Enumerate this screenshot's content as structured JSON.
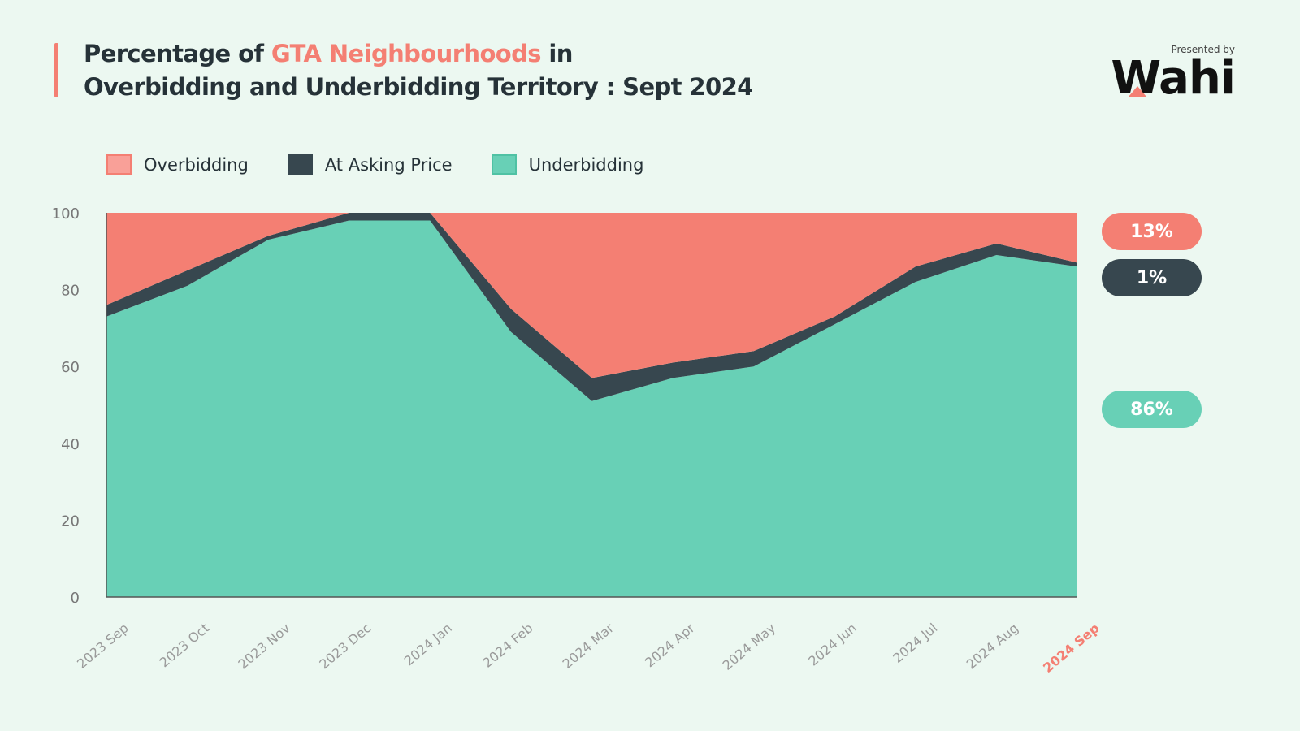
{
  "header": {
    "title_part1": "Percentage of ",
    "title_highlight": "GTA Neighbourhoods",
    "title_part2": " in",
    "title_line2": "Overbidding and Underbidding Territory : Sept 2024"
  },
  "brand": {
    "presented_by": "Presented by",
    "logo_text": "Wahi"
  },
  "callouts": {
    "overbidding": "13%",
    "at_asking": "1%",
    "underbidding": "86%"
  },
  "colors": {
    "overbidding": "#f47f73",
    "at_asking": "#37474f",
    "underbidding": "#68d0b6",
    "background": "#ecf8f1",
    "highlight_tick": "#f47f73"
  },
  "chart_data": {
    "type": "area",
    "stacked": true,
    "x": [
      "2023 Sep",
      "2023 Oct",
      "2023 Nov",
      "2023 Dec",
      "2024 Jan",
      "2024 Feb",
      "2024 Mar",
      "2024 Apr",
      "2024 May",
      "2024 Jun",
      "2024 Jul",
      "2024 Aug",
      "2024 Sep"
    ],
    "series": [
      {
        "name": "Underbidding",
        "values": [
          73,
          81,
          93,
          98,
          98,
          69,
          51,
          57,
          60,
          71,
          82,
          89,
          86
        ]
      },
      {
        "name": "At Asking Price",
        "values": [
          3,
          4,
          1,
          2,
          2,
          6,
          6,
          4,
          4,
          2,
          4,
          3,
          1
        ]
      },
      {
        "name": "Overbidding",
        "values": [
          24,
          15,
          6,
          0,
          0,
          25,
          43,
          39,
          36,
          27,
          14,
          8,
          13
        ]
      }
    ],
    "ylim": [
      0,
      100
    ],
    "yticks": [
      0,
      20,
      40,
      60,
      80,
      100
    ],
    "highlight_category": "2024 Sep",
    "legend": "top-left",
    "grid": false
  }
}
